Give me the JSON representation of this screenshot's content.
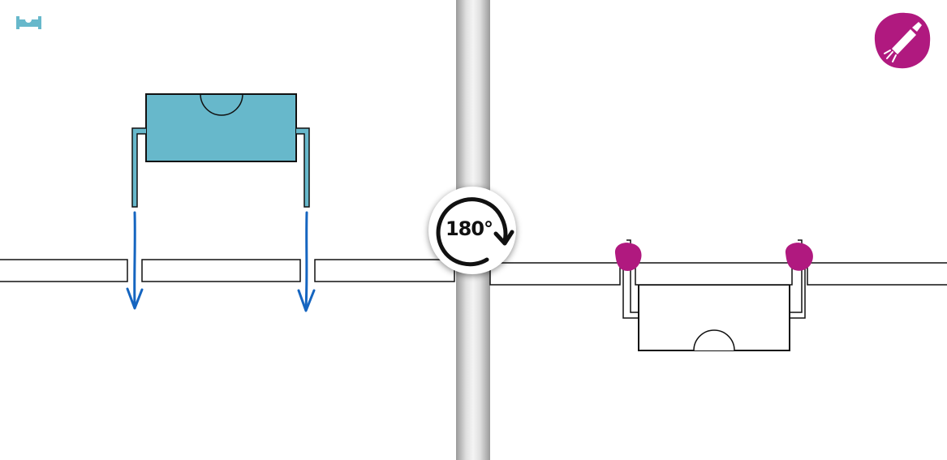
{
  "rotation": {
    "label": "180°"
  },
  "icons": {
    "left_corner": "component-icon",
    "right_corner": "solder-icon"
  },
  "colors": {
    "component_fill": "#67b8cb",
    "arrow": "#1565c0",
    "solder": "#b0197f",
    "outline": "#111111"
  }
}
